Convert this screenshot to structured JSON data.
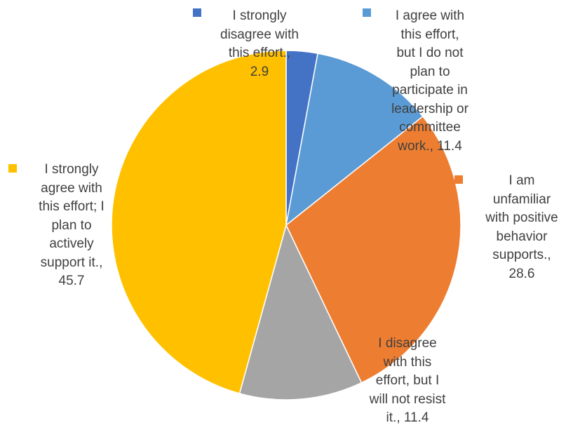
{
  "chart_data": {
    "type": "pie",
    "slices": [
      {
        "label": "I strongly\ndisagree with\nthis effort.,\n2.9",
        "category": "I strongly disagree with this effort.",
        "value": 2.9,
        "color": "#4472C4"
      },
      {
        "label": "I agree with\nthis effort,\nbut I do not\nplan to\nparticipate in\nleadership or\ncommittee\nwork., 11.4",
        "category": "I agree with this effort, but I do not plan to participate in leadership or committee work.",
        "value": 11.4,
        "color": "#5B9BD5"
      },
      {
        "label": "I am\nunfamiliar\nwith positive\nbehavior\nsupports.,\n28.6",
        "category": "I am unfamiliar with positive behavior supports.",
        "value": 28.6,
        "color": "#ED7D31"
      },
      {
        "label": "I disagree\nwith this\neffort, but I\nwill not resist\nit., 11.4",
        "category": "I disagree with this effort, but I will not resist it.",
        "value": 11.4,
        "color": "#A5A5A5"
      },
      {
        "label": "I strongly\nagree with\nthis effort; I\nplan to\nactively\nsupport it.,\n45.7",
        "category": "I strongly agree with this effort; I plan to actively support it.",
        "value": 45.7,
        "color": "#FFC000"
      }
    ]
  }
}
